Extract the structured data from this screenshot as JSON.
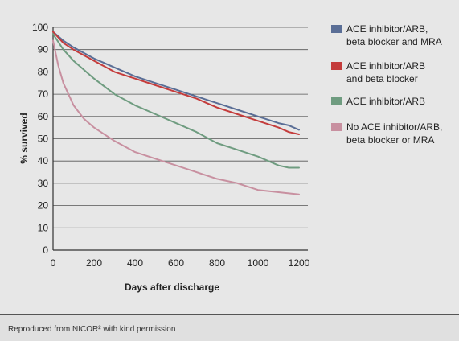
{
  "chart_data": {
    "type": "line",
    "xlabel": "Days after discharge",
    "ylabel": "% survived",
    "xlim": [
      0,
      1200
    ],
    "ylim": [
      0,
      100
    ],
    "x_ticks": [
      0,
      200,
      400,
      600,
      800,
      1000,
      1200
    ],
    "y_ticks": [
      0,
      10,
      20,
      30,
      40,
      50,
      60,
      70,
      80,
      90,
      100
    ],
    "grid": "horizontal",
    "legend_position": "right",
    "series": [
      {
        "name": "ACE inhibitor/ARB, beta blocker and MRA",
        "label_lines": [
          "ACE inhibitor/ARB,",
          "beta blocker and MRA"
        ],
        "color": "#5a6e96",
        "x": [
          0,
          50,
          100,
          200,
          300,
          400,
          500,
          600,
          700,
          800,
          900,
          1000,
          1100,
          1150,
          1200
        ],
        "y": [
          98,
          94,
          91,
          86,
          82,
          78,
          75,
          72,
          69,
          66,
          63,
          60,
          57,
          56,
          54
        ]
      },
      {
        "name": "ACE inhibitor/ARB and beta blocker",
        "label_lines": [
          "ACE inhibitor/ARB",
          "and beta blocker"
        ],
        "color": "#c43c3c",
        "x": [
          0,
          50,
          100,
          200,
          300,
          400,
          500,
          600,
          700,
          800,
          900,
          1000,
          1100,
          1150,
          1200
        ],
        "y": [
          98,
          93,
          90,
          85,
          80,
          77,
          74,
          71,
          68,
          64,
          61,
          58,
          55,
          53,
          52
        ]
      },
      {
        "name": "ACE inhibitor/ARB",
        "label_lines": [
          "ACE inhibitor/ARB"
        ],
        "color": "#6f9c80",
        "x": [
          0,
          50,
          100,
          200,
          300,
          400,
          500,
          600,
          700,
          800,
          900,
          1000,
          1100,
          1150,
          1200
        ],
        "y": [
          97,
          90,
          85,
          77,
          70,
          65,
          61,
          57,
          53,
          48,
          45,
          42,
          38,
          37,
          37
        ]
      },
      {
        "name": "No ACE inhibitor/ARB, beta blocker or MRA",
        "label_lines": [
          "No ACE inhibitor/ARB,",
          "beta blocker or MRA"
        ],
        "color": "#c890a0",
        "x": [
          0,
          25,
          50,
          100,
          150,
          200,
          300,
          400,
          500,
          600,
          700,
          800,
          900,
          1000,
          1100,
          1200
        ],
        "y": [
          94,
          83,
          75,
          65,
          59,
          55,
          49,
          44,
          41,
          38,
          35,
          32,
          30,
          27,
          26,
          25
        ]
      }
    ]
  },
  "caption": "Reproduced from NICOR² with kind permission"
}
